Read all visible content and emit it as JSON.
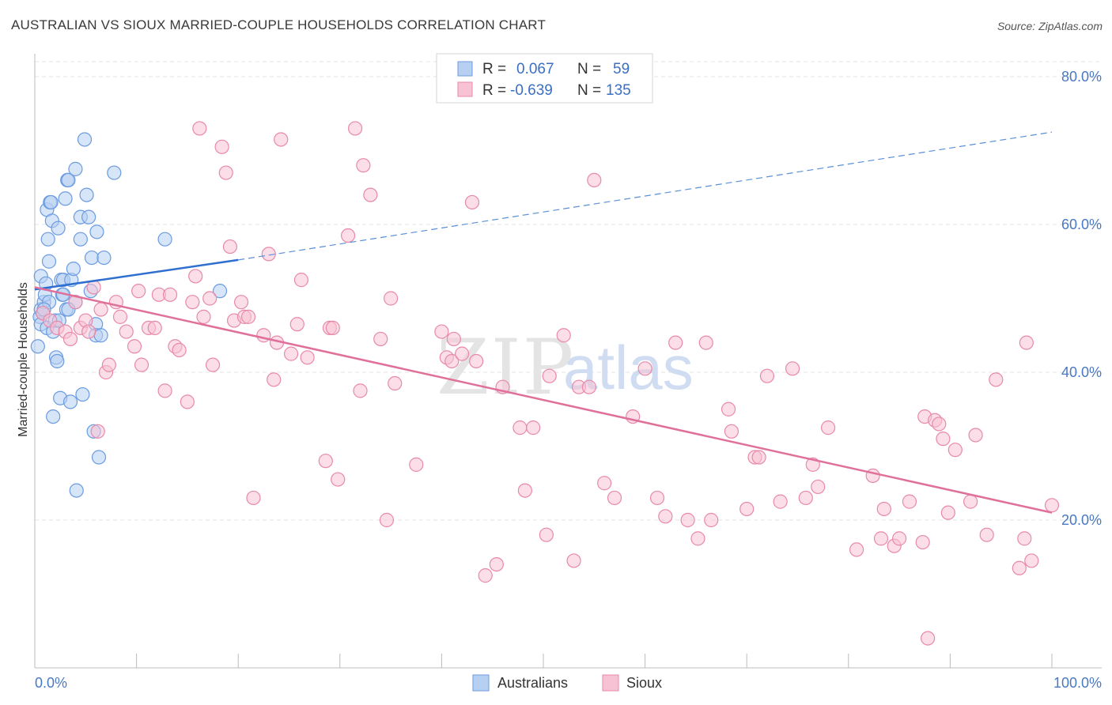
{
  "title": "AUSTRALIAN VS SIOUX MARRIED-COUPLE HOUSEHOLDS CORRELATION CHART",
  "source": "Source: ZipAtlas.com",
  "watermark": {
    "zip": "ZIP",
    "atlas": "atlas"
  },
  "legend": {
    "rows": [
      {
        "r_label": "R =",
        "r_value": "0.067",
        "n_label": "N =",
        "n_value": "59",
        "color": "#a9c8ef",
        "stroke": "#5b8fd6"
      },
      {
        "r_label": "R =",
        "r_value": "-0.639",
        "n_label": "N =",
        "n_value": "135",
        "color": "#f7bcd0",
        "stroke": "#e887a8"
      }
    ]
  },
  "chart_data": {
    "type": "scatter",
    "title": "AUSTRALIAN VS SIOUX MARRIED-COUPLE HOUSEHOLDS CORRELATION CHART",
    "xlabel": "",
    "ylabel": "Married-couple Households",
    "xlim": [
      0,
      100
    ],
    "ylim": [
      0,
      86
    ],
    "x_tick_labels": [
      "0.0%",
      "100.0%"
    ],
    "y_ticks": [
      20,
      40,
      60,
      80
    ],
    "y_tick_labels": [
      "20.0%",
      "40.0%",
      "60.0%",
      "80.0%"
    ],
    "grid": true,
    "series": [
      {
        "name": "Australians",
        "color": "#6b9be0",
        "fill": "#b7d0f2",
        "trend": {
          "x0": 0,
          "y0": 51.2,
          "x1": 20,
          "y1": 55.2,
          "x_dash_end": 100,
          "y_dash_end": 72.5
        },
        "points": [
          [
            0.3,
            43.5
          ],
          [
            0.5,
            47.5
          ],
          [
            0.6,
            46.5
          ],
          [
            0.6,
            48.5
          ],
          [
            0.6,
            53
          ],
          [
            0.8,
            48
          ],
          [
            0.9,
            49.5
          ],
          [
            1,
            50.5
          ],
          [
            1.1,
            52
          ],
          [
            1.2,
            46
          ],
          [
            1.2,
            62
          ],
          [
            1.3,
            58
          ],
          [
            1.4,
            55
          ],
          [
            1.5,
            63
          ],
          [
            1.6,
            63
          ],
          [
            1.7,
            60.5
          ],
          [
            1.8,
            45.5
          ],
          [
            1.8,
            34
          ],
          [
            2,
            47
          ],
          [
            2.1,
            42
          ],
          [
            2.2,
            41.5
          ],
          [
            2.3,
            59.5
          ],
          [
            2.5,
            36.5
          ],
          [
            2.6,
            52.5
          ],
          [
            2.7,
            50.5
          ],
          [
            2.8,
            52.5
          ],
          [
            3,
            63.5
          ],
          [
            3.1,
            48.5
          ],
          [
            3.2,
            66
          ],
          [
            3.3,
            66
          ],
          [
            3.5,
            36
          ],
          [
            3.6,
            52.5
          ],
          [
            3.8,
            54
          ],
          [
            4,
            49.5
          ],
          [
            4,
            67.5
          ],
          [
            4.5,
            58
          ],
          [
            4.5,
            61
          ],
          [
            4.7,
            37
          ],
          [
            4.9,
            71.5
          ],
          [
            5.1,
            64
          ],
          [
            5.3,
            61
          ],
          [
            5.5,
            51
          ],
          [
            5.6,
            55.5
          ],
          [
            5.8,
            32
          ],
          [
            6,
            46.5
          ],
          [
            6,
            45
          ],
          [
            6.1,
            59
          ],
          [
            6.3,
            28.5
          ],
          [
            6.5,
            45
          ],
          [
            6.8,
            55.5
          ],
          [
            7.8,
            67
          ],
          [
            12.8,
            58
          ],
          [
            18.2,
            51
          ],
          [
            4.1,
            24
          ],
          [
            2.8,
            50.5
          ],
          [
            1.4,
            49.5
          ],
          [
            0.9,
            48.5
          ],
          [
            3.3,
            48.5
          ],
          [
            2.4,
            47
          ]
        ]
      },
      {
        "name": "Sioux",
        "color": "#e889a9",
        "fill": "#f7c3d4",
        "trend": {
          "x0": 0,
          "y0": 51.5,
          "x1": 100,
          "y1": 21
        },
        "points": [
          [
            0.8,
            48
          ],
          [
            1.5,
            47
          ],
          [
            2.2,
            46
          ],
          [
            3,
            45.5
          ],
          [
            3.5,
            44.5
          ],
          [
            4,
            49.5
          ],
          [
            4.5,
            46
          ],
          [
            5,
            47
          ],
          [
            5.3,
            45.5
          ],
          [
            5.8,
            51.5
          ],
          [
            6.2,
            32
          ],
          [
            6.5,
            48.5
          ],
          [
            7,
            40
          ],
          [
            7.3,
            41
          ],
          [
            8,
            49.5
          ],
          [
            8.4,
            47.5
          ],
          [
            9,
            45.5
          ],
          [
            9.8,
            43.5
          ],
          [
            10.2,
            51
          ],
          [
            10.5,
            41
          ],
          [
            11.2,
            46
          ],
          [
            11.8,
            46
          ],
          [
            12.2,
            50.5
          ],
          [
            12.8,
            37.5
          ],
          [
            13.3,
            50.5
          ],
          [
            13.8,
            43.5
          ],
          [
            14.2,
            43
          ],
          [
            15,
            36
          ],
          [
            15.5,
            49.5
          ],
          [
            15.8,
            53
          ],
          [
            16.2,
            73
          ],
          [
            16.6,
            47.5
          ],
          [
            17.2,
            50
          ],
          [
            17.5,
            41
          ],
          [
            18.4,
            70.5
          ],
          [
            18.8,
            67
          ],
          [
            19.2,
            57
          ],
          [
            19.6,
            47
          ],
          [
            20.3,
            49.5
          ],
          [
            20.6,
            47.5
          ],
          [
            21,
            47.5
          ],
          [
            21.5,
            23
          ],
          [
            22.5,
            45
          ],
          [
            23,
            56
          ],
          [
            23.5,
            39
          ],
          [
            23.8,
            44
          ],
          [
            24.2,
            71.5
          ],
          [
            25.2,
            42.5
          ],
          [
            25.8,
            46.5
          ],
          [
            26.2,
            52.5
          ],
          [
            26.8,
            42
          ],
          [
            28.6,
            28
          ],
          [
            29,
            46
          ],
          [
            29.3,
            46
          ],
          [
            29.8,
            25.5
          ],
          [
            30.8,
            58.5
          ],
          [
            31.5,
            73
          ],
          [
            32,
            37.5
          ],
          [
            32.3,
            68
          ],
          [
            33,
            64
          ],
          [
            34,
            44.5
          ],
          [
            34.6,
            20
          ],
          [
            35,
            50
          ],
          [
            35.4,
            38.5
          ],
          [
            37.5,
            27.5
          ],
          [
            40,
            45.5
          ],
          [
            40.5,
            42
          ],
          [
            41,
            41.5
          ],
          [
            41.2,
            44.5
          ],
          [
            42,
            42.5
          ],
          [
            43,
            63
          ],
          [
            43.4,
            41.5
          ],
          [
            44.3,
            12.5
          ],
          [
            45.4,
            14
          ],
          [
            46,
            38
          ],
          [
            47.7,
            32.5
          ],
          [
            48.2,
            24
          ],
          [
            49,
            32.5
          ],
          [
            50.3,
            18
          ],
          [
            50.6,
            39.5
          ],
          [
            52,
            45
          ],
          [
            53,
            14.5
          ],
          [
            53.5,
            38
          ],
          [
            54.5,
            38
          ],
          [
            55,
            66
          ],
          [
            56,
            25
          ],
          [
            57,
            23
          ],
          [
            58.8,
            34
          ],
          [
            60,
            40.5
          ],
          [
            61.2,
            23
          ],
          [
            62,
            20.5
          ],
          [
            63,
            44
          ],
          [
            64.2,
            20
          ],
          [
            65.2,
            17.5
          ],
          [
            66,
            44
          ],
          [
            66.5,
            20
          ],
          [
            68.2,
            35
          ],
          [
            68.5,
            32
          ],
          [
            70,
            21.5
          ],
          [
            70.8,
            28.5
          ],
          [
            71.2,
            28.5
          ],
          [
            72,
            39.5
          ],
          [
            73.3,
            22.5
          ],
          [
            74.5,
            40.5
          ],
          [
            75.8,
            23
          ],
          [
            76.5,
            27.5
          ],
          [
            77,
            24.5
          ],
          [
            78,
            32.5
          ],
          [
            80.8,
            16
          ],
          [
            82.4,
            26
          ],
          [
            83.2,
            17.5
          ],
          [
            83.5,
            21.5
          ],
          [
            84.5,
            16.5
          ],
          [
            85,
            17.5
          ],
          [
            86,
            22.5
          ],
          [
            87.3,
            17
          ],
          [
            87.5,
            34
          ],
          [
            87.8,
            4
          ],
          [
            88.5,
            33.5
          ],
          [
            88.9,
            33
          ],
          [
            89.3,
            31
          ],
          [
            89.8,
            21
          ],
          [
            90.5,
            29.5
          ],
          [
            92,
            22.5
          ],
          [
            92.5,
            31.5
          ],
          [
            93.6,
            18
          ],
          [
            94.5,
            39
          ],
          [
            96.8,
            13.5
          ],
          [
            97.3,
            17.5
          ],
          [
            97.5,
            44
          ],
          [
            98,
            14.5
          ],
          [
            100,
            22
          ]
        ]
      }
    ]
  },
  "bottom_legend": [
    {
      "label": "Australians",
      "fill": "#b7d0f2",
      "stroke": "#6b9be0"
    },
    {
      "label": "Sioux",
      "fill": "#f7c3d4",
      "stroke": "#e889a9"
    }
  ]
}
